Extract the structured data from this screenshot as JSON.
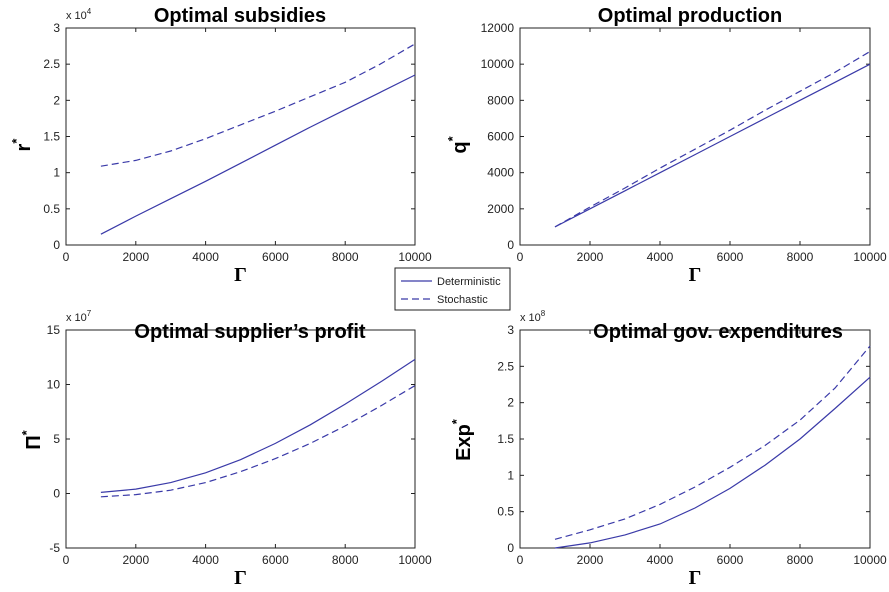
{
  "colors": {
    "series": "#3a3aa8",
    "axis": "#222222"
  },
  "legend": {
    "entries": [
      {
        "label": "Deterministic",
        "style": "solid"
      },
      {
        "label": "Stochastic",
        "style": "dashed"
      }
    ]
  },
  "chart_data": [
    {
      "type": "line",
      "title": "Optimal subsidies",
      "xlabel": "Γ",
      "ylabel": "r",
      "ylabel_sup": "*",
      "exponent_label": "x 10",
      "exponent_power": "4",
      "xlim": [
        0,
        10000
      ],
      "ylim": [
        0,
        3
      ],
      "xticks": [
        0,
        2000,
        4000,
        6000,
        8000,
        10000
      ],
      "yticks": [
        0,
        0.5,
        1,
        1.5,
        2,
        2.5,
        3
      ],
      "ytick_labels": [
        "0",
        "0.5",
        "1",
        "1.5",
        "2",
        "2.5",
        "3"
      ],
      "series": [
        {
          "name": "Deterministic",
          "style": "solid",
          "x": [
            1000,
            2000,
            3000,
            4000,
            5000,
            6000,
            7000,
            8000,
            9000,
            10000
          ],
          "y": [
            0.15,
            0.4,
            0.64,
            0.88,
            1.13,
            1.38,
            1.63,
            1.87,
            2.11,
            2.35
          ]
        },
        {
          "name": "Stochastic",
          "style": "dashed",
          "x": [
            1000,
            2000,
            3000,
            4000,
            5000,
            6000,
            7000,
            8000,
            9000,
            10000
          ],
          "y": [
            1.09,
            1.17,
            1.3,
            1.47,
            1.66,
            1.85,
            2.05,
            2.25,
            2.5,
            2.78
          ]
        }
      ]
    },
    {
      "type": "line",
      "title": "Optimal production",
      "xlabel": "Γ",
      "ylabel": "q",
      "ylabel_sup": "*",
      "exponent_label": "",
      "exponent_power": "",
      "xlim": [
        0,
        10000
      ],
      "ylim": [
        0,
        12000
      ],
      "xticks": [
        0,
        2000,
        4000,
        6000,
        8000,
        10000
      ],
      "yticks": [
        0,
        2000,
        4000,
        6000,
        8000,
        10000,
        12000
      ],
      "ytick_labels": [
        "0",
        "2000",
        "4000",
        "6000",
        "8000",
        "10000",
        "12000"
      ],
      "series": [
        {
          "name": "Deterministic",
          "style": "solid",
          "x": [
            1000,
            2000,
            3000,
            4000,
            5000,
            6000,
            7000,
            8000,
            9000,
            10000
          ],
          "y": [
            1000,
            2000,
            3000,
            4000,
            5000,
            6000,
            7000,
            8000,
            9000,
            10000
          ]
        },
        {
          "name": "Stochastic",
          "style": "dashed",
          "x": [
            1000,
            2000,
            3000,
            4000,
            5000,
            6000,
            7000,
            8000,
            9000,
            10000
          ],
          "y": [
            1000,
            2100,
            3150,
            4250,
            5300,
            6350,
            7450,
            8500,
            9550,
            10700
          ]
        }
      ]
    },
    {
      "type": "line",
      "title": "Optimal supplier’s profit",
      "xlabel": "Γ",
      "ylabel": "Π",
      "ylabel_sup": "*",
      "exponent_label": "x 10",
      "exponent_power": "7",
      "xlim": [
        0,
        10000
      ],
      "ylim": [
        -5,
        15
      ],
      "xticks": [
        0,
        2000,
        4000,
        6000,
        8000,
        10000
      ],
      "yticks": [
        -5,
        0,
        5,
        10,
        15
      ],
      "ytick_labels": [
        "-5",
        "0",
        "5",
        "10",
        "15"
      ],
      "series": [
        {
          "name": "Deterministic",
          "style": "solid",
          "x": [
            1000,
            2000,
            3000,
            4000,
            5000,
            6000,
            7000,
            8000,
            9000,
            10000
          ],
          "y": [
            0.1,
            0.4,
            1.0,
            1.9,
            3.1,
            4.6,
            6.3,
            8.2,
            10.2,
            12.3
          ]
        },
        {
          "name": "Stochastic",
          "style": "dashed",
          "x": [
            1000,
            2000,
            3000,
            4000,
            5000,
            6000,
            7000,
            8000,
            9000,
            10000
          ],
          "y": [
            -0.3,
            -0.1,
            0.3,
            1.0,
            2.0,
            3.2,
            4.6,
            6.2,
            8.0,
            9.9
          ]
        }
      ]
    },
    {
      "type": "line",
      "title": "Optimal gov. expenditures",
      "xlabel": "Γ",
      "ylabel": "Exp",
      "ylabel_sup": "*",
      "exponent_label": "x 10",
      "exponent_power": "8",
      "xlim": [
        0,
        10000
      ],
      "ylim": [
        0,
        3
      ],
      "xticks": [
        0,
        2000,
        4000,
        6000,
        8000,
        10000
      ],
      "yticks": [
        0,
        0.5,
        1,
        1.5,
        2,
        2.5,
        3
      ],
      "ytick_labels": [
        "0",
        "0.5",
        "1",
        "1.5",
        "2",
        "2.5",
        "3"
      ],
      "series": [
        {
          "name": "Deterministic",
          "style": "solid",
          "x": [
            1000,
            2000,
            3000,
            4000,
            5000,
            6000,
            7000,
            8000,
            9000,
            10000
          ],
          "y": [
            0.0,
            0.07,
            0.18,
            0.33,
            0.55,
            0.82,
            1.14,
            1.5,
            1.92,
            2.35
          ]
        },
        {
          "name": "Stochastic",
          "style": "dashed",
          "x": [
            1000,
            2000,
            3000,
            4000,
            5000,
            6000,
            7000,
            8000,
            9000,
            10000
          ],
          "y": [
            0.12,
            0.25,
            0.4,
            0.6,
            0.84,
            1.11,
            1.41,
            1.76,
            2.2,
            2.78
          ]
        }
      ]
    }
  ]
}
